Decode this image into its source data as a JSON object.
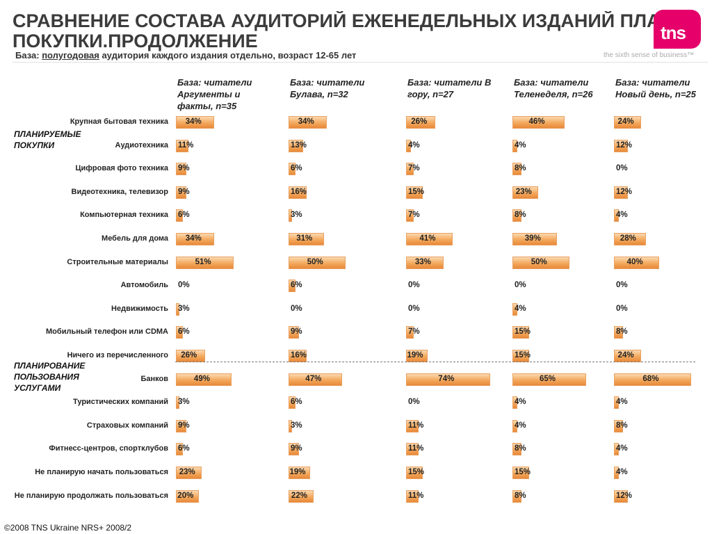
{
  "header": {
    "title_line1": "СРАВНЕНИЕ СОСТАВА АУДИТОРИЙ ЕЖЕНЕДЕЛЬНЫХ ИЗДАНИЙ ПЛАН",
    "title_line2": "ПОКУПКИ.ПРОДОЛЖЕНИЕ",
    "subtitle_prefix": "База: ",
    "subtitle_underlined": "полугодовая",
    "subtitle_suffix": " аудитория каждого издания отдельно, возраст 12-65 лет"
  },
  "logo": {
    "text": "tns",
    "tagline": "the sixth sense of business™",
    "color": "#e5006a"
  },
  "footer": {
    "text": "©2008 TNS Ukraine  NRS+ 2008/2"
  },
  "chart_data": {
    "type": "bar",
    "orientation": "horizontal",
    "value_suffix": "%",
    "groups": [
      {
        "label": "ПЛАНИРУЕМЫЕ ПОКУПКИ",
        "categories": [
          0,
          1,
          2,
          3,
          4,
          5,
          6,
          7,
          8,
          9,
          10
        ]
      },
      {
        "label": "ПЛАНИРОВАНИЕ ПОЛЬЗОВАНИЯ УСЛУГАМИ",
        "categories": [
          11,
          12,
          13,
          14,
          15,
          16
        ]
      }
    ],
    "categories": [
      "Крупная бытовая техника",
      "Аудиотехника",
      "Цифровая фото техника",
      "Видеотехника, телевизор",
      "Компьютерная техника",
      "Мебель для дома",
      "Строительные материалы",
      "Автомобиль",
      "Недвижимость",
      "Мобильный телефон или CDMA",
      "Ничего из перечисленного",
      "Банков",
      "Туристических компаний",
      "Страховых компаний",
      "Фитнесс-центров, спортклубов",
      "Не планирую начать пользоваться",
      "Не планирую продолжать пользоваться"
    ],
    "series": [
      {
        "name": "База: читатели Аргументы и факты, n=35",
        "values": [
          34,
          11,
          9,
          9,
          6,
          34,
          51,
          0,
          3,
          6,
          26,
          49,
          3,
          9,
          6,
          23,
          20
        ]
      },
      {
        "name": "База: читатели Булава, n=32",
        "values": [
          34,
          13,
          6,
          16,
          3,
          31,
          50,
          6,
          0,
          9,
          16,
          47,
          6,
          3,
          9,
          19,
          22
        ]
      },
      {
        "name": "База: читатели В гору, n=27",
        "values": [
          26,
          4,
          7,
          15,
          7,
          41,
          33,
          0,
          0,
          7,
          19,
          74,
          0,
          11,
          11,
          15,
          11
        ]
      },
      {
        "name": "База: читатели Теленеделя, n=26",
        "values": [
          46,
          4,
          8,
          23,
          8,
          39,
          50,
          0,
          4,
          15,
          15,
          65,
          4,
          4,
          8,
          15,
          8
        ]
      },
      {
        "name": "База: читатели Новый день, n=25",
        "values": [
          24,
          12,
          0,
          12,
          4,
          28,
          40,
          0,
          0,
          8,
          24,
          68,
          4,
          8,
          4,
          4,
          12
        ]
      }
    ],
    "bar_color": "#f3a85c",
    "xlim": [
      0,
      100
    ],
    "legend": "column-headers",
    "grid": false
  }
}
